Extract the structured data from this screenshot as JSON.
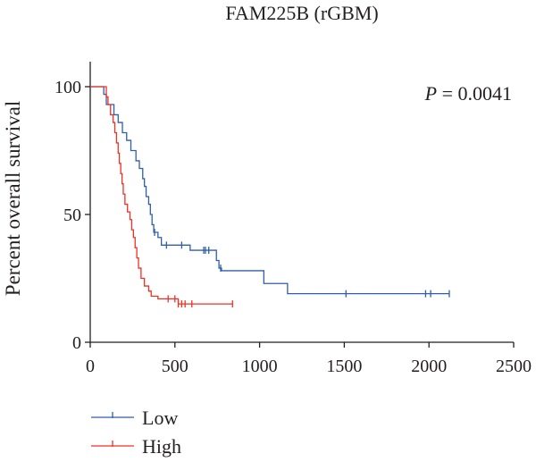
{
  "chart_data": {
    "type": "line",
    "title": "FAM225B (rGBM)",
    "xlabel": "",
    "ylabel": "Percent overall survival",
    "xlim": [
      0,
      2500
    ],
    "ylim": [
      0,
      100
    ],
    "xticks": [
      0,
      500,
      1000,
      1500,
      2000,
      2500
    ],
    "yticks": [
      0,
      50,
      100
    ],
    "annotation": {
      "prefix": "P",
      "text": " = 0.0041"
    },
    "legend_position": "bottom-left",
    "series": [
      {
        "name": "Low",
        "color": "#2e5fad",
        "steps": [
          [
            0,
            100
          ],
          [
            55,
            100
          ],
          [
            80,
            97
          ],
          [
            95,
            93
          ],
          [
            140,
            89
          ],
          [
            165,
            86
          ],
          [
            190,
            82
          ],
          [
            215,
            79
          ],
          [
            240,
            75
          ],
          [
            270,
            71
          ],
          [
            290,
            68
          ],
          [
            310,
            64
          ],
          [
            320,
            61
          ],
          [
            330,
            57
          ],
          [
            345,
            54
          ],
          [
            355,
            50
          ],
          [
            365,
            46
          ],
          [
            375,
            43
          ],
          [
            400,
            41
          ],
          [
            420,
            38
          ],
          [
            580,
            38
          ],
          [
            590,
            36
          ],
          [
            730,
            36
          ],
          [
            745,
            32
          ],
          [
            760,
            29
          ],
          [
            775,
            28
          ],
          [
            1020,
            28
          ],
          [
            1025,
            23
          ],
          [
            1160,
            23
          ],
          [
            1165,
            19
          ],
          [
            2120,
            19
          ]
        ],
        "censored": [
          [
            380,
            43
          ],
          [
            450,
            38
          ],
          [
            540,
            38
          ],
          [
            670,
            36
          ],
          [
            680,
            36
          ],
          [
            700,
            36
          ],
          [
            770,
            29
          ],
          [
            1510,
            19
          ],
          [
            1980,
            19
          ],
          [
            2010,
            19
          ],
          [
            2120,
            19
          ]
        ]
      },
      {
        "name": "High",
        "color": "#ee3124",
        "steps": [
          [
            0,
            100
          ],
          [
            75,
            100
          ],
          [
            95,
            96
          ],
          [
            105,
            93
          ],
          [
            120,
            89
          ],
          [
            135,
            86
          ],
          [
            145,
            82
          ],
          [
            155,
            78
          ],
          [
            165,
            74
          ],
          [
            172,
            70
          ],
          [
            180,
            66
          ],
          [
            188,
            62
          ],
          [
            195,
            58
          ],
          [
            205,
            54
          ],
          [
            220,
            51
          ],
          [
            235,
            48
          ],
          [
            245,
            44
          ],
          [
            255,
            41
          ],
          [
            265,
            37
          ],
          [
            275,
            33
          ],
          [
            285,
            29
          ],
          [
            300,
            25
          ],
          [
            320,
            22
          ],
          [
            345,
            20
          ],
          [
            360,
            18
          ],
          [
            400,
            17
          ],
          [
            510,
            17
          ],
          [
            520,
            15
          ],
          [
            840,
            15
          ]
        ],
        "censored": [
          [
            460,
            17
          ],
          [
            500,
            17
          ],
          [
            520,
            15
          ],
          [
            540,
            15
          ],
          [
            560,
            15
          ],
          [
            600,
            15
          ],
          [
            840,
            15
          ]
        ]
      }
    ]
  }
}
